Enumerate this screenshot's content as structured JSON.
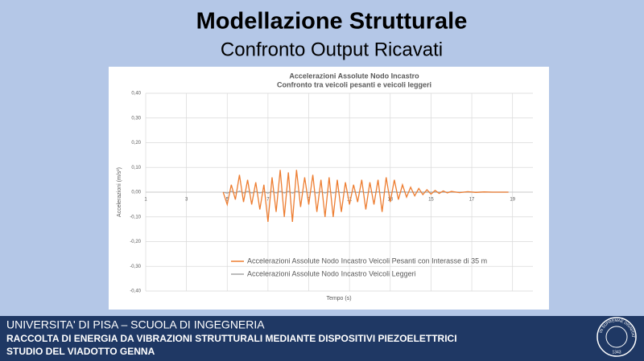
{
  "slide": {
    "title": "Modellazione Strutturale",
    "subtitle": "Confronto Output Ricavati"
  },
  "footer": {
    "line1": "UNIVERSITA' DI PISA – SCUOLA DI INGEGNERIA",
    "line2": "RACCOLTA DI ENERGIA DA VIBRAZIONI STRUTTURALI MEDIANTE DISPOSITIVI PIEZOELETTRICI",
    "line3": "STUDIO DEL VIADOTTO GENNA",
    "logo_motto": "IN SUPREMAE DIGNITATIS",
    "logo_year": "1343"
  },
  "chart_data": {
    "type": "line",
    "title": "Accelerazioni Assolute Nodo Incastro",
    "subtitle": "Confronto tra veicoli pesanti e veicoli leggeri",
    "x_label": "Tempo (s)",
    "y_label": "Accelerazioni (m/s²)",
    "x": [
      4.8,
      5.0,
      5.2,
      5.4,
      5.6,
      5.8,
      6.0,
      6.2,
      6.4,
      6.6,
      6.8,
      7.0,
      7.2,
      7.4,
      7.6,
      7.8,
      8.0,
      8.2,
      8.4,
      8.6,
      8.8,
      9.0,
      9.2,
      9.4,
      9.6,
      9.8,
      10.0,
      10.2,
      10.4,
      10.6,
      10.8,
      11.0,
      11.2,
      11.4,
      11.6,
      11.8,
      12.0,
      12.2,
      12.4,
      12.6,
      12.8,
      13.0,
      13.2,
      13.4,
      13.6,
      13.8,
      14.0,
      14.2,
      14.4,
      14.6,
      14.8,
      15.0,
      15.2,
      15.4,
      15.6,
      15.8,
      16.0,
      16.4,
      16.8,
      17.2,
      17.6,
      18.0,
      18.8
    ],
    "series": [
      {
        "name": "Accelerazioni Assolute Nodo Incastro Veicoli Pesanti con Interasse di 35 m",
        "color": "#ed7d31",
        "values": [
          0,
          -0.05,
          0.03,
          -0.03,
          0.07,
          -0.04,
          0.05,
          -0.05,
          0.04,
          -0.07,
          0.03,
          -0.12,
          0.06,
          -0.08,
          0.09,
          -0.1,
          0.08,
          -0.12,
          0.09,
          -0.06,
          0.06,
          -0.05,
          0.07,
          -0.08,
          0.05,
          -0.1,
          0.06,
          -0.1,
          0.05,
          -0.08,
          0.04,
          -0.05,
          0.03,
          -0.04,
          0.05,
          -0.07,
          0.04,
          -0.05,
          0.05,
          -0.08,
          0.06,
          -0.04,
          0.05,
          -0.03,
          0.03,
          -0.02,
          0.02,
          -0.015,
          0.015,
          -0.01,
          0.01,
          -0.008,
          0.007,
          -0.005,
          0.005,
          -0.003,
          0.003,
          -0.002,
          0.002,
          -0.001,
          0.001,
          0,
          0
        ]
      },
      {
        "name": "Accelerazioni Assolute Nodo Incastro Veicoli Leggeri",
        "color": "#a5a5a5",
        "values": [
          0,
          -0.004,
          0.003,
          -0.003,
          0.004,
          -0.003,
          0.003,
          -0.003,
          0.002,
          -0.003,
          0.002,
          -0.004,
          0.003,
          -0.003,
          0.003,
          -0.003,
          0.003,
          -0.004,
          0.003,
          -0.002,
          0.002,
          -0.002,
          0.002,
          -0.003,
          0.002,
          -0.003,
          0.002,
          -0.003,
          0.002,
          -0.002,
          0.001,
          -0.002,
          0.001,
          -0.001,
          0.002,
          -0.002,
          0.001,
          -0.001,
          0.001,
          -0.002,
          0.001,
          -0.001,
          0.001,
          -0.001,
          0.001,
          0,
          0,
          0,
          0,
          0,
          0,
          0,
          0,
          0,
          0,
          0,
          0,
          0,
          0,
          0,
          0,
          0,
          0
        ]
      }
    ],
    "xlim": [
      1,
      20
    ],
    "xticks": [
      1,
      3,
      5,
      7,
      9,
      11,
      13,
      15,
      17,
      19
    ],
    "ylim": [
      -0.4,
      0.4
    ],
    "yticks": [
      {
        "value": -0.4,
        "label": "-0,40"
      },
      {
        "value": -0.3,
        "label": "-0,30"
      },
      {
        "value": -0.2,
        "label": "-0,20"
      },
      {
        "value": -0.1,
        "label": "-0,10"
      },
      {
        "value": 0,
        "label": "0,00"
      },
      {
        "value": 0.1,
        "label": "0,10"
      },
      {
        "value": 0.2,
        "label": "0,20"
      },
      {
        "value": 0.3,
        "label": "0,30"
      },
      {
        "value": 0.4,
        "label": "0,40"
      }
    ],
    "grid": true,
    "legend": "lower center"
  }
}
